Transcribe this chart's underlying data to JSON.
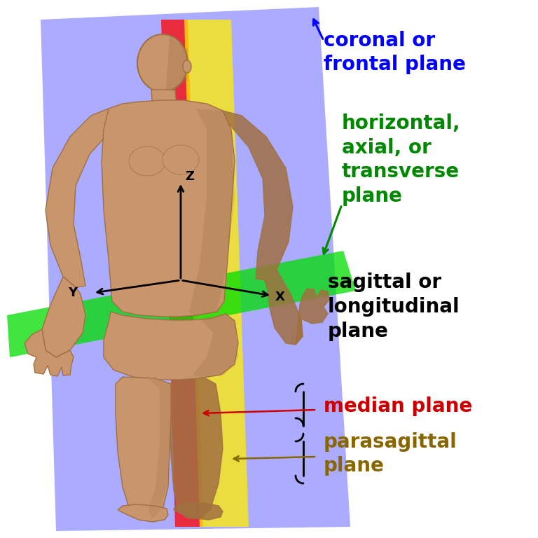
{
  "background_color": "#ffffff",
  "coronal_plane_color": "#8888ff",
  "coronal_plane_alpha": 0.7,
  "axial_plane_color": "#00dd00",
  "axial_plane_alpha": 0.75,
  "sagittal_median_color": "#ff0000",
  "sagittal_median_alpha": 0.75,
  "sagittal_para_color": "#ffee00",
  "sagittal_para_alpha": 0.75,
  "labels": {
    "coronal": "coronal or\nfrontal plane",
    "axial": "horizontal,\naxial, or\ntransverse\nplane",
    "sagittal": "sagittal or\nlongitudinal\nplane",
    "median": "median plane",
    "parasagittal": "parasagittal\nplane"
  },
  "label_colors": {
    "coronal": "#0000ff",
    "axial": "#008800",
    "sagittal": "#000000",
    "median": "#cc0000",
    "parasagittal": "#886600"
  },
  "label_fontsize": 20,
  "axis_color": "#000000",
  "body_color": "#c8956c",
  "body_dark": "#a07040",
  "body_shadow": "#8b6040"
}
